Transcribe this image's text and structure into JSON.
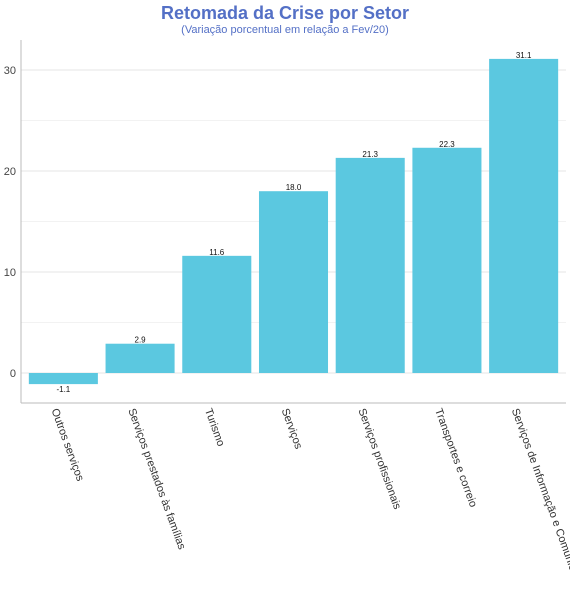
{
  "chart_data": {
    "type": "bar",
    "title": "Retomada da Crise por Setor",
    "subtitle": "(Variação porcentual em relação a Fev/20)",
    "categories": [
      "Outros serviços",
      "Serviços prestados às famílias",
      "Turismo",
      "Serviços",
      "Serviços profissionais",
      "Transportes e correio",
      "Serviços de Informação e Comunicação"
    ],
    "values": [
      -1.1,
      2.9,
      11.6,
      18.0,
      21.3,
      22.3,
      31.1
    ],
    "value_labels": [
      "-1.1",
      "2.9",
      "11.6",
      "18.0",
      "21.3",
      "22.3",
      "31.1"
    ],
    "yticks": [
      0,
      10,
      20,
      30
    ],
    "ylim": [
      -3,
      33
    ],
    "xlabel": "",
    "ylabel": "",
    "bar_color": "#5bc8e0",
    "grid": true
  }
}
